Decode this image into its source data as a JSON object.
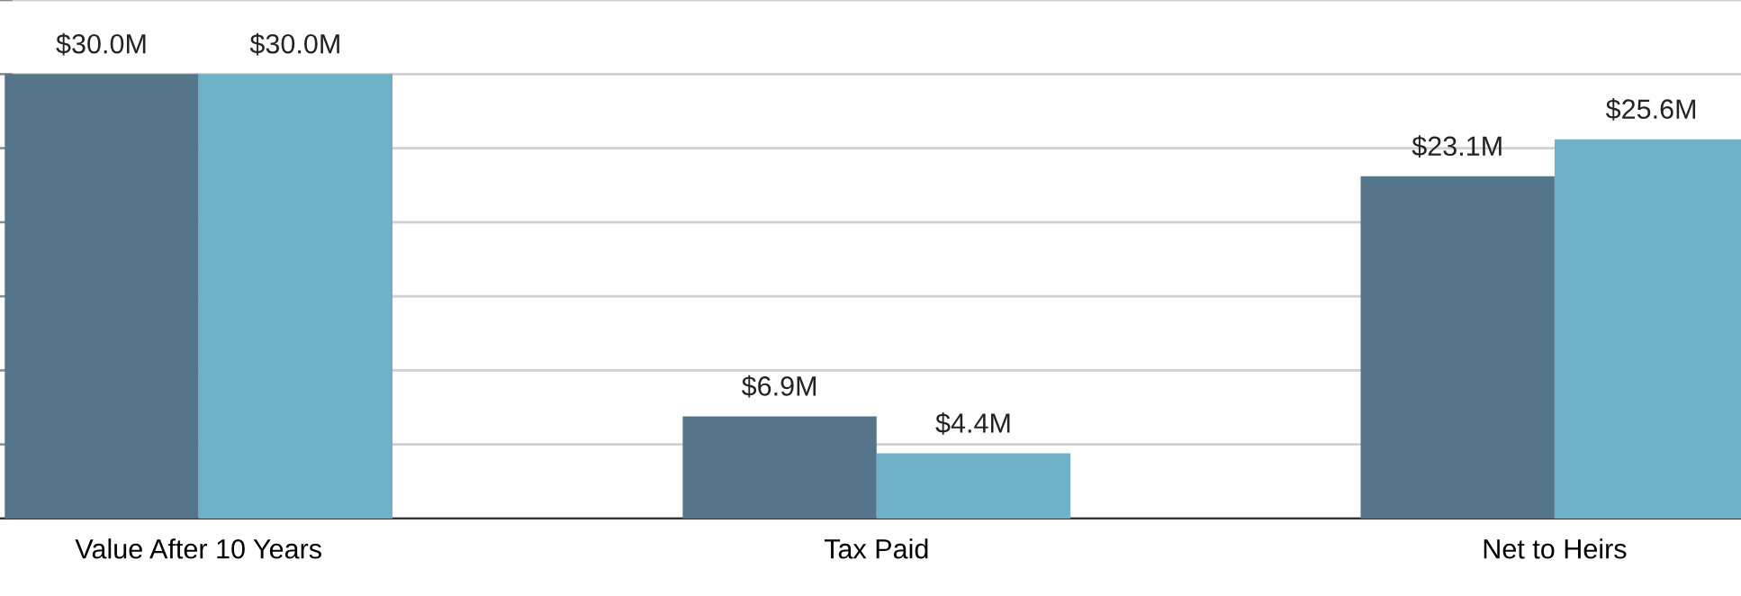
{
  "chart_data": {
    "type": "bar",
    "categories": [
      "Value After 10 Years",
      "Tax Paid",
      "Net to Heirs"
    ],
    "series": [
      {
        "color": "#54758a",
        "values": [
          30.0,
          6.9,
          23.1
        ],
        "value_labels": [
          "$30.0M",
          "$6.9M",
          "$23.1M"
        ]
      },
      {
        "color": "#6fb1c7",
        "values": [
          30.0,
          4.4,
          25.6
        ],
        "value_labels": [
          "$30.0M",
          "$4.4M",
          "$25.6M"
        ]
      }
    ],
    "ylim": [
      0,
      35
    ],
    "yticks": [
      {
        "value": 0,
        "label": null
      },
      {
        "value": 5,
        "label": null
      },
      {
        "value": 10,
        "label": null
      },
      {
        "value": 15,
        "label": null
      },
      {
        "value": 20,
        "label": null
      },
      {
        "value": 25,
        "label": null
      },
      {
        "value": 30,
        "label": null
      },
      {
        "value": 35,
        "label": null
      }
    ],
    "grid": "y",
    "tick_labels": "x"
  }
}
